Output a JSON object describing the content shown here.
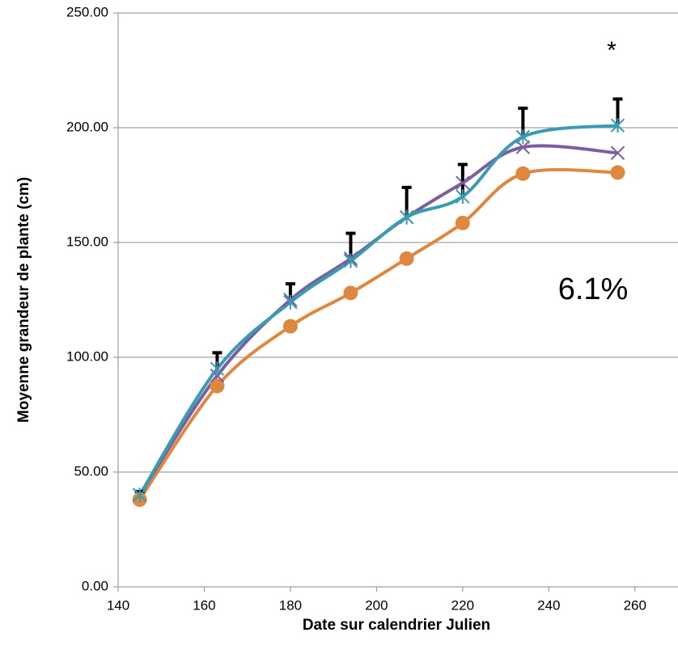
{
  "chart_data": {
    "type": "line",
    "x_label": "Date sur calendrier Julien",
    "y_label": "Moyenne grandeur de plante (cm)",
    "annotations": [
      "*",
      "6.1%"
    ],
    "x": [
      145,
      163,
      180,
      194,
      207,
      220,
      234,
      256
    ],
    "series": [
      {
        "color": "#e0873f",
        "marker": "circle",
        "values": [
          38,
          87.5,
          113.5,
          128,
          143,
          158.5,
          180,
          180.5
        ]
      },
      {
        "color": "#7b5ea0",
        "marker": "x",
        "values": [
          40,
          92,
          125,
          143,
          161,
          176,
          191.5,
          189
        ]
      },
      {
        "color": "#3a9cb2",
        "marker": "star",
        "values": [
          40,
          95,
          124,
          142,
          161,
          170,
          196,
          201
        ],
        "errors": [
          1.5,
          7,
          8,
          12,
          13,
          14,
          12.5,
          11.5
        ]
      }
    ],
    "xlim": [
      140,
      270
    ],
    "xticks": [
      140,
      160,
      180,
      200,
      220,
      240,
      260
    ],
    "ylim": [
      0,
      250
    ],
    "yticks": [
      {
        "value": 0,
        "label": "0.00"
      },
      {
        "value": 50,
        "label": "50.00"
      },
      {
        "value": 100,
        "label": "100.00"
      },
      {
        "value": 150,
        "label": "150.00"
      },
      {
        "value": 200,
        "label": "200.00"
      },
      {
        "value": 250,
        "label": "250.00"
      }
    ],
    "grid": true
  }
}
